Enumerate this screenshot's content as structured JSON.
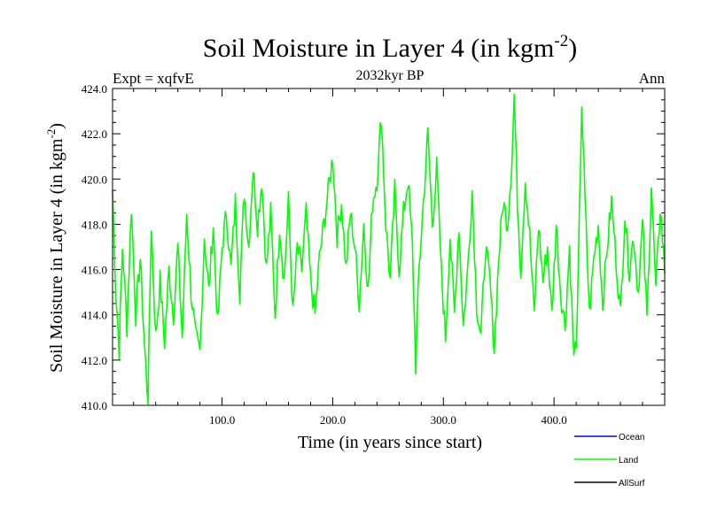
{
  "chart_data": {
    "type": "line",
    "title_main": "Soil Moisture in Layer 4 (in kgm",
    "title_sup": "-2",
    "title_close": ")",
    "subtitle": "2032kyr BP",
    "left_label": "Expt = xqfvE",
    "right_label": "Ann",
    "xlabel": "Time (in years since start)",
    "ylabel_main": "Soil Moisture in Layer 4 (in kgm",
    "ylabel_sup": "-2",
    "ylabel_close": ")",
    "xlim": [
      1,
      500
    ],
    "ylim": [
      410.0,
      424.0
    ],
    "x_major_ticks": [
      100,
      200,
      300,
      400
    ],
    "x_tick_labels": [
      "100.0",
      "200.0",
      "300.0",
      "400.0"
    ],
    "y_major_ticks": [
      410,
      412,
      414,
      416,
      418,
      420,
      422,
      424
    ],
    "y_tick_labels": [
      "410.0",
      "412.0",
      "414.0",
      "416.0",
      "418.0",
      "420.0",
      "422.0",
      "424.0"
    ],
    "legend": [
      {
        "name": "Ocean",
        "color": "#0000ff"
      },
      {
        "name": "Land",
        "color": "#00ff00"
      },
      {
        "name": "AllSurf",
        "color": "#000000"
      }
    ],
    "series": [
      {
        "name": "Land",
        "color": "#00ff00",
        "x_start": 1,
        "x_end": 500,
        "anchors": [
          [
            1,
            419.5
          ],
          [
            4,
            415.0
          ],
          [
            7,
            412.5
          ],
          [
            10,
            417.0
          ],
          [
            14,
            413.5
          ],
          [
            18,
            418.8
          ],
          [
            22,
            414.0
          ],
          [
            26,
            416.5
          ],
          [
            30,
            412.5
          ],
          [
            33,
            410.2
          ],
          [
            36,
            418.0
          ],
          [
            40,
            413.0
          ],
          [
            44,
            415.5
          ],
          [
            48,
            412.8
          ],
          [
            52,
            416.0
          ],
          [
            56,
            414.0
          ],
          [
            60,
            417.0
          ],
          [
            64,
            413.0
          ],
          [
            68,
            418.5
          ],
          [
            72,
            415.0
          ],
          [
            76,
            413.0
          ],
          [
            80,
            412.3
          ],
          [
            84,
            417.5
          ],
          [
            88,
            415.0
          ],
          [
            92,
            418.0
          ],
          [
            96,
            413.5
          ],
          [
            100,
            417.0
          ],
          [
            104,
            418.5
          ],
          [
            108,
            416.0
          ],
          [
            112,
            419.0
          ],
          [
            116,
            415.0
          ],
          [
            120,
            419.5
          ],
          [
            124,
            417.0
          ],
          [
            128,
            420.5
          ],
          [
            132,
            418.0
          ],
          [
            136,
            420.0
          ],
          [
            140,
            416.0
          ],
          [
            144,
            418.5
          ],
          [
            148,
            414.0
          ],
          [
            152,
            418.0
          ],
          [
            156,
            415.5
          ],
          [
            160,
            419.0
          ],
          [
            164,
            414.0
          ],
          [
            168,
            417.0
          ],
          [
            172,
            416.0
          ],
          [
            176,
            418.5
          ],
          [
            180,
            415.5
          ],
          [
            184,
            414.0
          ],
          [
            188,
            416.5
          ],
          [
            192,
            418.0
          ],
          [
            196,
            419.5
          ],
          [
            200,
            421.0
          ],
          [
            204,
            417.5
          ],
          [
            208,
            419.0
          ],
          [
            212,
            416.0
          ],
          [
            216,
            418.5
          ],
          [
            220,
            417.0
          ],
          [
            224,
            414.5
          ],
          [
            228,
            418.0
          ],
          [
            232,
            415.0
          ],
          [
            236,
            419.0
          ],
          [
            240,
            420.0
          ],
          [
            244,
            422.8
          ],
          [
            248,
            418.0
          ],
          [
            252,
            415.5
          ],
          [
            256,
            419.5
          ],
          [
            260,
            416.0
          ],
          [
            264,
            418.5
          ],
          [
            268,
            420.0
          ],
          [
            272,
            417.0
          ],
          [
            275,
            411.8
          ],
          [
            278,
            416.0
          ],
          [
            282,
            419.0
          ],
          [
            286,
            422.0
          ],
          [
            290,
            418.0
          ],
          [
            294,
            420.5
          ],
          [
            298,
            416.0
          ],
          [
            302,
            413.0
          ],
          [
            306,
            417.5
          ],
          [
            310,
            414.0
          ],
          [
            314,
            418.0
          ],
          [
            318,
            413.5
          ],
          [
            322,
            416.0
          ],
          [
            326,
            419.5
          ],
          [
            330,
            414.5
          ],
          [
            334,
            413.0
          ],
          [
            338,
            417.0
          ],
          [
            342,
            415.5
          ],
          [
            346,
            412.5
          ],
          [
            350,
            416.5
          ],
          [
            354,
            419.0
          ],
          [
            358,
            418.0
          ],
          [
            362,
            421.0
          ],
          [
            364,
            423.7
          ],
          [
            367,
            419.0
          ],
          [
            370,
            416.0
          ],
          [
            374,
            420.0
          ],
          [
            378,
            417.5
          ],
          [
            382,
            414.0
          ],
          [
            386,
            418.0
          ],
          [
            390,
            415.5
          ],
          [
            394,
            417.0
          ],
          [
            398,
            414.0
          ],
          [
            402,
            418.0
          ],
          [
            406,
            415.0
          ],
          [
            410,
            413.5
          ],
          [
            414,
            417.0
          ],
          [
            418,
            412.0
          ],
          [
            421,
            413.5
          ],
          [
            423,
            418.5
          ],
          [
            425,
            423.4
          ],
          [
            428,
            419.0
          ],
          [
            432,
            414.0
          ],
          [
            436,
            416.5
          ],
          [
            440,
            418.0
          ],
          [
            444,
            414.5
          ],
          [
            448,
            417.0
          ],
          [
            452,
            419.0
          ],
          [
            456,
            416.5
          ],
          [
            460,
            414.0
          ],
          [
            464,
            418.5
          ],
          [
            468,
            416.0
          ],
          [
            472,
            417.5
          ],
          [
            476,
            415.0
          ],
          [
            480,
            418.0
          ],
          [
            484,
            413.8
          ],
          [
            488,
            419.8
          ],
          [
            492,
            415.0
          ],
          [
            496,
            418.8
          ],
          [
            500,
            416.0
          ]
        ]
      }
    ]
  }
}
